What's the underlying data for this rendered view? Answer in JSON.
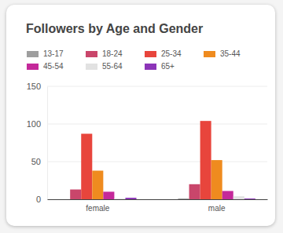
{
  "chart_data": {
    "type": "bar",
    "title": "Followers by Age and Gender",
    "categories": [
      "female",
      "male"
    ],
    "series": [
      {
        "name": "13-17",
        "color": "#9e9e9e",
        "values": [
          0,
          1
        ]
      },
      {
        "name": "18-24",
        "color": "#c9466b",
        "values": [
          13,
          20
        ]
      },
      {
        "name": "25-34",
        "color": "#e8453c",
        "values": [
          87,
          104
        ]
      },
      {
        "name": "35-44",
        "color": "#ef8b1f",
        "values": [
          38,
          52
        ]
      },
      {
        "name": "45-54",
        "color": "#c4299a",
        "values": [
          10,
          11
        ]
      },
      {
        "name": "55-64",
        "color": "#e2e2e2",
        "values": [
          1,
          4
        ]
      },
      {
        "name": "65+",
        "color": "#8c35b8",
        "values": [
          2,
          1
        ]
      }
    ],
    "ylim": [
      0,
      150
    ],
    "yticks": [
      0,
      50,
      100,
      150
    ],
    "grid": true,
    "legend": "top"
  }
}
